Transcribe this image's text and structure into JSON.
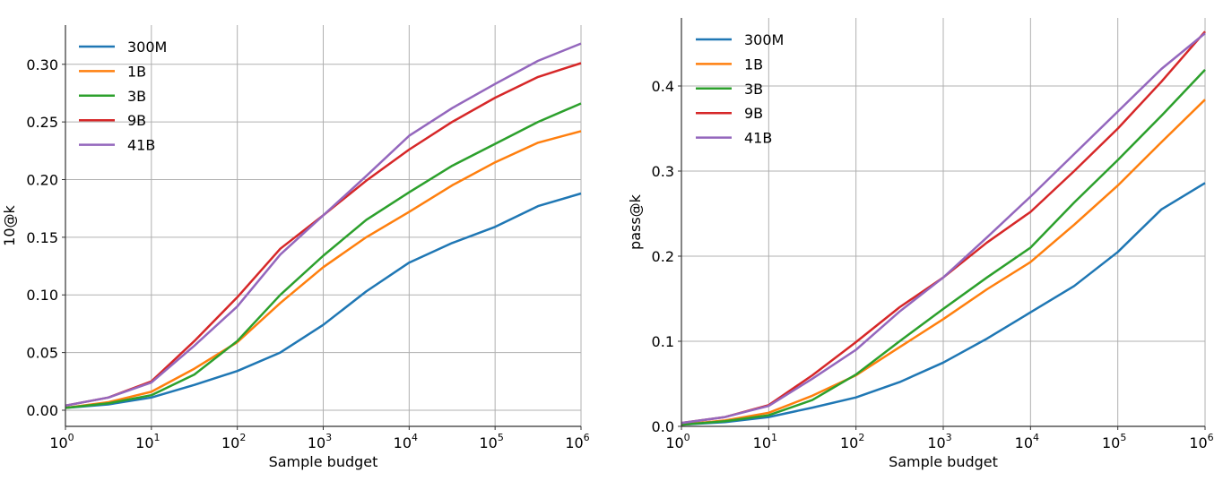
{
  "chart_data": [
    {
      "type": "line",
      "title": "",
      "xlabel": "Sample budget",
      "ylabel": "10@k",
      "xscale": "log",
      "xlim": [
        1,
        1000000
      ],
      "ylim": [
        -0.014,
        0.334
      ],
      "grid": true,
      "legend_placement": "top-left",
      "xticks_log10": [
        0,
        1,
        2,
        3,
        4,
        5,
        6
      ],
      "xtick_labels": [
        {
          "base": "10",
          "exp": "0"
        },
        {
          "base": "10",
          "exp": "1"
        },
        {
          "base": "10",
          "exp": "2"
        },
        {
          "base": "10",
          "exp": "3"
        },
        {
          "base": "10",
          "exp": "4"
        },
        {
          "base": "10",
          "exp": "5"
        },
        {
          "base": "10",
          "exp": "6"
        }
      ],
      "yticks": [
        0,
        0.05,
        0.1,
        0.15,
        0.2,
        0.25,
        0.3
      ],
      "ytick_labels": [
        "0.00",
        "0.05",
        "0.10",
        "0.15",
        "0.20",
        "0.25",
        "0.30"
      ],
      "x_log10": [
        0,
        0.5,
        1,
        1.5,
        2,
        2.5,
        3,
        3.5,
        4,
        4.5,
        5,
        5.5,
        6
      ],
      "series": [
        {
          "name": "300M",
          "color": "#1f77b4",
          "values": [
            0.002,
            0.005,
            0.011,
            0.022,
            0.034,
            0.05,
            0.074,
            0.103,
            0.128,
            0.145,
            0.159,
            0.177,
            0.188
          ]
        },
        {
          "name": "1B",
          "color": "#ff7f0e",
          "values": [
            0.002,
            0.007,
            0.016,
            0.036,
            0.059,
            0.093,
            0.124,
            0.15,
            0.172,
            0.195,
            0.215,
            0.232,
            0.242
          ]
        },
        {
          "name": "3B",
          "color": "#2ca02c",
          "values": [
            0.002,
            0.006,
            0.013,
            0.031,
            0.06,
            0.1,
            0.134,
            0.165,
            0.189,
            0.212,
            0.231,
            0.25,
            0.266
          ]
        },
        {
          "name": "9B",
          "color": "#d62728",
          "values": [
            0.004,
            0.011,
            0.025,
            0.06,
            0.098,
            0.14,
            0.169,
            0.199,
            0.226,
            0.25,
            0.271,
            0.289,
            0.301
          ]
        },
        {
          "name": "41B",
          "color": "#9467bd",
          "values": [
            0.004,
            0.011,
            0.024,
            0.056,
            0.09,
            0.135,
            0.169,
            0.203,
            0.238,
            0.262,
            0.283,
            0.303,
            0.318
          ]
        }
      ]
    },
    {
      "type": "line",
      "title": "",
      "xlabel": "Sample budget",
      "ylabel": "pass@k",
      "xscale": "log",
      "xlim": [
        1,
        1000000
      ],
      "ylim": [
        0,
        0.48
      ],
      "grid": true,
      "legend_placement": "top-left",
      "xticks_log10": [
        0,
        1,
        2,
        3,
        4,
        5,
        6
      ],
      "xtick_labels": [
        {
          "base": "10",
          "exp": "0"
        },
        {
          "base": "10",
          "exp": "1"
        },
        {
          "base": "10",
          "exp": "2"
        },
        {
          "base": "10",
          "exp": "3"
        },
        {
          "base": "10",
          "exp": "4"
        },
        {
          "base": "10",
          "exp": "5"
        },
        {
          "base": "10",
          "exp": "6"
        }
      ],
      "yticks": [
        0,
        0.1,
        0.2,
        0.3,
        0.4
      ],
      "ytick_labels": [
        "0.0",
        "0.1",
        "0.2",
        "0.3",
        "0.4"
      ],
      "x_log10": [
        0,
        0.5,
        1,
        1.5,
        2,
        2.5,
        3,
        3.5,
        4,
        4.5,
        5,
        5.5,
        6
      ],
      "series": [
        {
          "name": "300M",
          "color": "#1f77b4",
          "values": [
            0.002,
            0.005,
            0.011,
            0.022,
            0.034,
            0.052,
            0.075,
            0.103,
            0.134,
            0.165,
            0.205,
            0.255,
            0.286
          ]
        },
        {
          "name": "1B",
          "color": "#ff7f0e",
          "values": [
            0.002,
            0.007,
            0.016,
            0.036,
            0.06,
            0.093,
            0.126,
            0.161,
            0.193,
            0.237,
            0.283,
            0.334,
            0.384
          ]
        },
        {
          "name": "3B",
          "color": "#2ca02c",
          "values": [
            0.002,
            0.006,
            0.013,
            0.031,
            0.061,
            0.1,
            0.138,
            0.175,
            0.21,
            0.263,
            0.313,
            0.365,
            0.419
          ]
        },
        {
          "name": "9B",
          "color": "#d62728",
          "values": [
            0.004,
            0.011,
            0.025,
            0.06,
            0.099,
            0.14,
            0.175,
            0.216,
            0.252,
            0.3,
            0.35,
            0.405,
            0.464
          ]
        },
        {
          "name": "41B",
          "color": "#9467bd",
          "values": [
            0.004,
            0.011,
            0.024,
            0.056,
            0.09,
            0.135,
            0.175,
            0.222,
            0.27,
            0.32,
            0.37,
            0.42,
            0.462
          ]
        }
      ]
    }
  ]
}
